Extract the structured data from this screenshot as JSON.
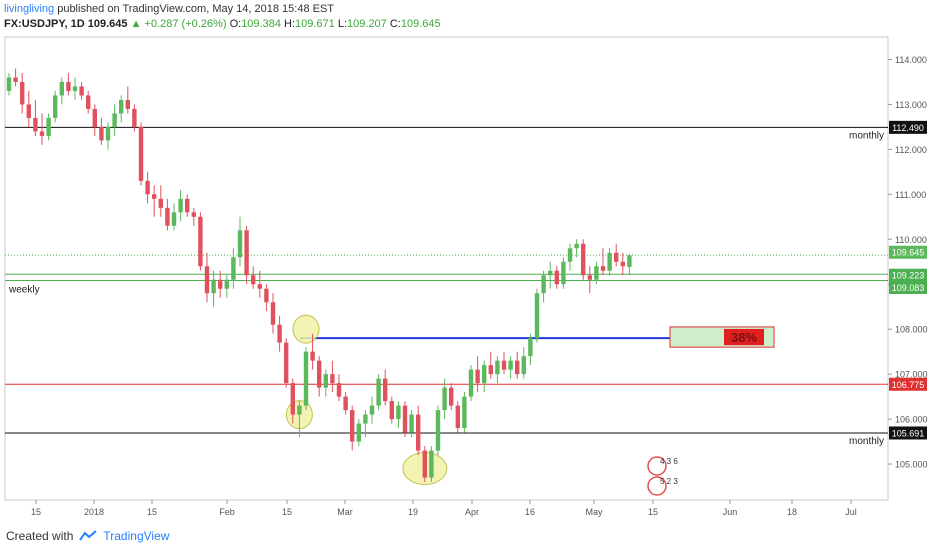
{
  "header": {
    "author": "livingliving",
    "published_text": "published on TradingView.com, May 14, 2018 15:48 EST",
    "symbol": "FX:USDJPY, 1D",
    "last": "109.645",
    "arrow": "▲",
    "change": "+0.287 (+0.26%)",
    "open_label": "O:",
    "open": "109.384",
    "high_label": "H:",
    "high": "109.671",
    "low_label": "L:",
    "low": "109.207",
    "close_label": "C:",
    "close": "109.645"
  },
  "footer": {
    "created_with": "Created with",
    "brand": "TradingView"
  },
  "colors": {
    "up": "#5cb85c",
    "down": "#e0515e",
    "blue": "#1f3bd6",
    "red": "#e03030",
    "green": "#4caf50",
    "black": "#111111"
  },
  "chart_data": {
    "type": "candlestick",
    "symbol": "FX:USDJPY",
    "interval": "1D",
    "ylim": [
      104.2,
      114.5
    ],
    "y_ticks": [
      "105.000",
      "106.000",
      "107.000",
      "108.000",
      "109.000",
      "110.000",
      "111.000",
      "112.000",
      "113.000",
      "114.000"
    ],
    "x_ticks": [
      "15",
      "2018",
      "15",
      "Feb",
      "15",
      "Mar",
      "19",
      "Apr",
      "16",
      "May",
      "15",
      "Jun",
      "18",
      "Jul"
    ],
    "candles": [
      [
        113.3,
        113.7,
        113.2,
        113.6
      ],
      [
        113.6,
        113.8,
        113.4,
        113.5
      ],
      [
        113.5,
        113.7,
        112.8,
        113.0
      ],
      [
        113.0,
        113.3,
        112.5,
        112.7
      ],
      [
        112.7,
        113.1,
        112.3,
        112.4
      ],
      [
        112.4,
        112.8,
        112.1,
        112.3
      ],
      [
        112.3,
        112.8,
        112.2,
        112.7
      ],
      [
        112.7,
        113.3,
        112.6,
        113.2
      ],
      [
        113.2,
        113.6,
        113.0,
        113.5
      ],
      [
        113.5,
        113.7,
        113.2,
        113.3
      ],
      [
        113.3,
        113.6,
        113.1,
        113.4
      ],
      [
        113.4,
        113.5,
        113.1,
        113.2
      ],
      [
        113.2,
        113.3,
        112.8,
        112.9
      ],
      [
        112.9,
        113.0,
        112.3,
        112.5
      ],
      [
        112.5,
        112.7,
        112.1,
        112.2
      ],
      [
        112.2,
        112.6,
        112.0,
        112.5
      ],
      [
        112.5,
        113.0,
        112.3,
        112.8
      ],
      [
        112.8,
        113.2,
        112.6,
        113.1
      ],
      [
        113.1,
        113.4,
        112.8,
        112.9
      ],
      [
        112.9,
        113.0,
        112.4,
        112.5
      ],
      [
        112.5,
        112.6,
        111.2,
        111.3
      ],
      [
        111.3,
        111.5,
        110.8,
        111.0
      ],
      [
        111.0,
        111.2,
        110.5,
        110.9
      ],
      [
        110.9,
        111.2,
        110.5,
        110.7
      ],
      [
        110.7,
        110.9,
        110.2,
        110.3
      ],
      [
        110.3,
        110.8,
        110.2,
        110.6
      ],
      [
        110.6,
        111.1,
        110.4,
        110.9
      ],
      [
        110.9,
        111.0,
        110.5,
        110.6
      ],
      [
        110.6,
        110.7,
        110.3,
        110.5
      ],
      [
        110.5,
        110.6,
        109.3,
        109.4
      ],
      [
        109.4,
        109.7,
        108.6,
        108.8
      ],
      [
        108.8,
        109.3,
        108.5,
        109.1
      ],
      [
        109.1,
        109.3,
        108.7,
        108.9
      ],
      [
        108.9,
        109.2,
        108.7,
        109.1
      ],
      [
        109.1,
        109.8,
        108.9,
        109.6
      ],
      [
        109.6,
        110.5,
        109.4,
        110.2
      ],
      [
        110.2,
        110.3,
        109.0,
        109.2
      ],
      [
        109.2,
        109.4,
        108.9,
        109.0
      ],
      [
        109.0,
        109.3,
        108.7,
        108.9
      ],
      [
        108.9,
        109.0,
        108.4,
        108.6
      ],
      [
        108.6,
        108.8,
        107.9,
        108.1
      ],
      [
        108.1,
        108.3,
        107.5,
        107.7
      ],
      [
        107.7,
        107.8,
        106.7,
        106.8
      ],
      [
        106.8,
        106.9,
        105.9,
        106.1
      ],
      [
        106.1,
        106.4,
        105.6,
        106.3
      ],
      [
        106.3,
        107.6,
        106.2,
        107.5
      ],
      [
        107.5,
        107.9,
        107.1,
        107.3
      ],
      [
        107.3,
        107.4,
        106.5,
        106.7
      ],
      [
        106.7,
        107.1,
        106.5,
        107.0
      ],
      [
        107.0,
        107.3,
        106.6,
        106.8
      ],
      [
        106.8,
        107.0,
        106.4,
        106.5
      ],
      [
        106.5,
        106.6,
        106.1,
        106.2
      ],
      [
        106.2,
        106.3,
        105.3,
        105.5
      ],
      [
        105.5,
        106.0,
        105.4,
        105.9
      ],
      [
        105.9,
        106.2,
        105.6,
        106.1
      ],
      [
        106.1,
        106.5,
        105.9,
        106.3
      ],
      [
        106.3,
        107.0,
        106.2,
        106.9
      ],
      [
        106.9,
        107.1,
        106.3,
        106.4
      ],
      [
        106.4,
        106.5,
        105.9,
        106.0
      ],
      [
        106.0,
        106.4,
        105.8,
        106.3
      ],
      [
        106.3,
        106.4,
        105.6,
        105.7
      ],
      [
        105.7,
        106.2,
        105.6,
        106.1
      ],
      [
        106.1,
        106.3,
        105.2,
        105.3
      ],
      [
        105.3,
        105.4,
        104.6,
        104.7
      ],
      [
        104.7,
        105.4,
        104.6,
        105.3
      ],
      [
        105.3,
        106.3,
        105.2,
        106.2
      ],
      [
        106.2,
        106.9,
        106.0,
        106.7
      ],
      [
        106.7,
        106.8,
        106.2,
        106.3
      ],
      [
        106.3,
        106.4,
        105.7,
        105.8
      ],
      [
        105.8,
        106.6,
        105.7,
        106.5
      ],
      [
        106.5,
        107.2,
        106.4,
        107.1
      ],
      [
        107.1,
        107.4,
        106.6,
        106.8
      ],
      [
        106.8,
        107.3,
        106.6,
        107.2
      ],
      [
        107.2,
        107.5,
        106.9,
        107.0
      ],
      [
        107.0,
        107.4,
        106.8,
        107.3
      ],
      [
        107.3,
        107.5,
        107.0,
        107.1
      ],
      [
        107.1,
        107.4,
        106.9,
        107.3
      ],
      [
        107.3,
        107.5,
        106.9,
        107.0
      ],
      [
        107.0,
        107.6,
        106.9,
        107.4
      ],
      [
        107.4,
        107.9,
        107.2,
        107.8
      ],
      [
        107.8,
        108.9,
        107.7,
        108.8
      ],
      [
        108.8,
        109.3,
        108.6,
        109.2
      ],
      [
        109.2,
        109.5,
        108.9,
        109.3
      ],
      [
        109.3,
        109.4,
        108.9,
        109.0
      ],
      [
        109.0,
        109.6,
        108.9,
        109.5
      ],
      [
        109.5,
        109.9,
        109.3,
        109.8
      ],
      [
        109.8,
        110.0,
        109.6,
        109.9
      ],
      [
        109.9,
        110.0,
        109.1,
        109.2
      ],
      [
        109.2,
        109.4,
        108.8,
        109.1
      ],
      [
        109.1,
        109.5,
        109.0,
        109.4
      ],
      [
        109.4,
        109.8,
        109.2,
        109.3
      ],
      [
        109.3,
        109.8,
        109.2,
        109.7
      ],
      [
        109.7,
        109.9,
        109.4,
        109.5
      ],
      [
        109.5,
        109.7,
        109.2,
        109.4
      ],
      [
        109.384,
        109.671,
        109.207,
        109.645
      ]
    ],
    "horizontal_levels": [
      {
        "value": 112.49,
        "label": "112.490",
        "annotation": "monthly",
        "color": "#111111"
      },
      {
        "value": 109.645,
        "label": "109.645",
        "annotation": "",
        "color": "#5cb85c",
        "dotted": true
      },
      {
        "value": 109.223,
        "label": "109.223",
        "annotation": "",
        "color": "#4caf50"
      },
      {
        "value": 109.083,
        "label": "109.083",
        "annotation": "weekly",
        "color": "#4caf50"
      },
      {
        "value": 107.8,
        "label": "",
        "annotation": "",
        "color": "#1f3bd6"
      },
      {
        "value": 106.775,
        "label": "106.775",
        "annotation": "",
        "color": "#e03030"
      },
      {
        "value": 105.691,
        "label": "105.691",
        "annotation": "monthly",
        "color": "#111111"
      }
    ],
    "fib_box": {
      "label": "38%",
      "y_top": 108.05,
      "y_bottom": 107.6
    },
    "highlight_ellipses": [
      {
        "candle_index": 44,
        "price": 106.1
      },
      {
        "candle_index": 45,
        "price": 108.0
      },
      {
        "candle_index": 63,
        "price": 104.9
      }
    ],
    "events_badge": {
      "top": "4 3 6",
      "bottom": "5 2 3"
    }
  }
}
